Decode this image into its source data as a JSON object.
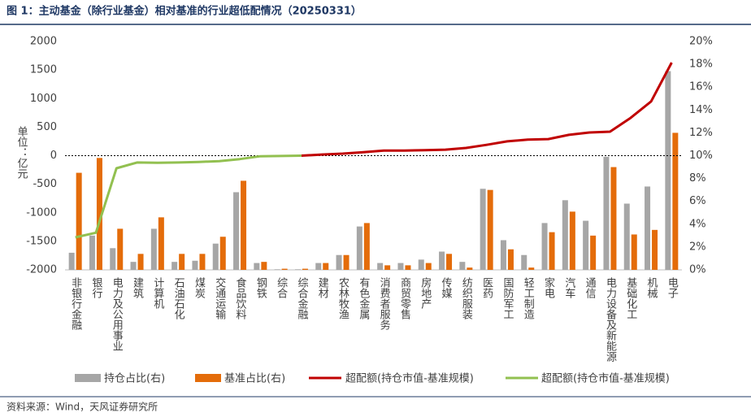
{
  "chart_data": {
    "type": "bar-line",
    "title": "图 1：主动基金（除行业基金）相对基准的行业超低配情况（20250331）",
    "y_label": "单位：亿元",
    "source": "资料来源：Wind，天风证券研究所",
    "categories": [
      "非银行金融",
      "银行",
      "电力及公用事业",
      "建筑",
      "计算机",
      "石油石化",
      "煤炭",
      "交通运输",
      "食品饮料",
      "钢铁",
      "综合",
      "综合金融",
      "建材",
      "农林牧渔",
      "有色金属",
      "消费者服务",
      "商贸零售",
      "房地产",
      "传媒",
      "纺织服装",
      "医药",
      "国防军工",
      "轻工制造",
      "家电",
      "汽车",
      "通信",
      "电力设备及新能源",
      "基础化工",
      "机械",
      "电子"
    ],
    "series": [
      {
        "name": "持仓占比(右)",
        "kind": "bar",
        "axis": "y2",
        "color": "#a6a6a6",
        "values": [
          1.5,
          3.0,
          1.9,
          0.7,
          3.6,
          0.7,
          0.8,
          2.3,
          6.8,
          0.6,
          0.05,
          0.05,
          0.6,
          1.3,
          3.8,
          0.6,
          0.6,
          0.9,
          1.6,
          0.7,
          7.1,
          2.6,
          1.3,
          4.1,
          6.1,
          4.3,
          9.9,
          5.8,
          7.3,
          17.4
        ]
      },
      {
        "name": "基准占比(右)",
        "kind": "bar",
        "axis": "y2",
        "color": "#e46c0a",
        "values": [
          8.5,
          9.8,
          3.6,
          1.4,
          4.6,
          1.4,
          1.4,
          2.9,
          7.8,
          0.7,
          0.1,
          0.1,
          0.6,
          1.3,
          4.1,
          0.4,
          0.4,
          0.6,
          1.4,
          0.2,
          7.0,
          1.8,
          0.2,
          3.3,
          5.1,
          3.0,
          9.0,
          3.1,
          3.5,
          12.0
        ]
      },
      {
        "name": "超配额(持仓市值-基准规模)",
        "kind": "line",
        "axis": "y",
        "color": "#c00000",
        "values": [
          null,
          null,
          null,
          null,
          null,
          null,
          null,
          null,
          null,
          null,
          null,
          0,
          20,
          35,
          60,
          90,
          90,
          95,
          105,
          135,
          190,
          250,
          280,
          290,
          365,
          405,
          420,
          660,
          950,
          1630
        ]
      },
      {
        "name": "超配额(持仓市值-基准规模)",
        "kind": "line",
        "axis": "y",
        "color": "#92c050",
        "values": [
          -1430,
          -1350,
          -220,
          -120,
          -125,
          -120,
          -110,
          -95,
          -60,
          -10,
          -5,
          0,
          null,
          null,
          null,
          null,
          null,
          null,
          null,
          null,
          null,
          null,
          null,
          null,
          null,
          null,
          null,
          null,
          null,
          null
        ]
      }
    ],
    "ylim": [
      -2000,
      2000
    ],
    "yticks": [
      -2000,
      -1500,
      -1000,
      -500,
      0,
      500,
      1000,
      1500,
      2000
    ],
    "y2lim": [
      0,
      20
    ],
    "y2ticks": [
      {
        "value": 0,
        "label": "0%"
      },
      {
        "value": 2,
        "label": "2%"
      },
      {
        "value": 4,
        "label": "4%"
      },
      {
        "value": 6,
        "label": "6%"
      },
      {
        "value": 8,
        "label": "8%"
      },
      {
        "value": 10,
        "label": "10%"
      },
      {
        "value": 12,
        "label": "12%"
      },
      {
        "value": 14,
        "label": "14%"
      },
      {
        "value": 16,
        "label": "16%"
      },
      {
        "value": 18,
        "label": "18%"
      },
      {
        "value": 20,
        "label": "20%"
      }
    ]
  }
}
